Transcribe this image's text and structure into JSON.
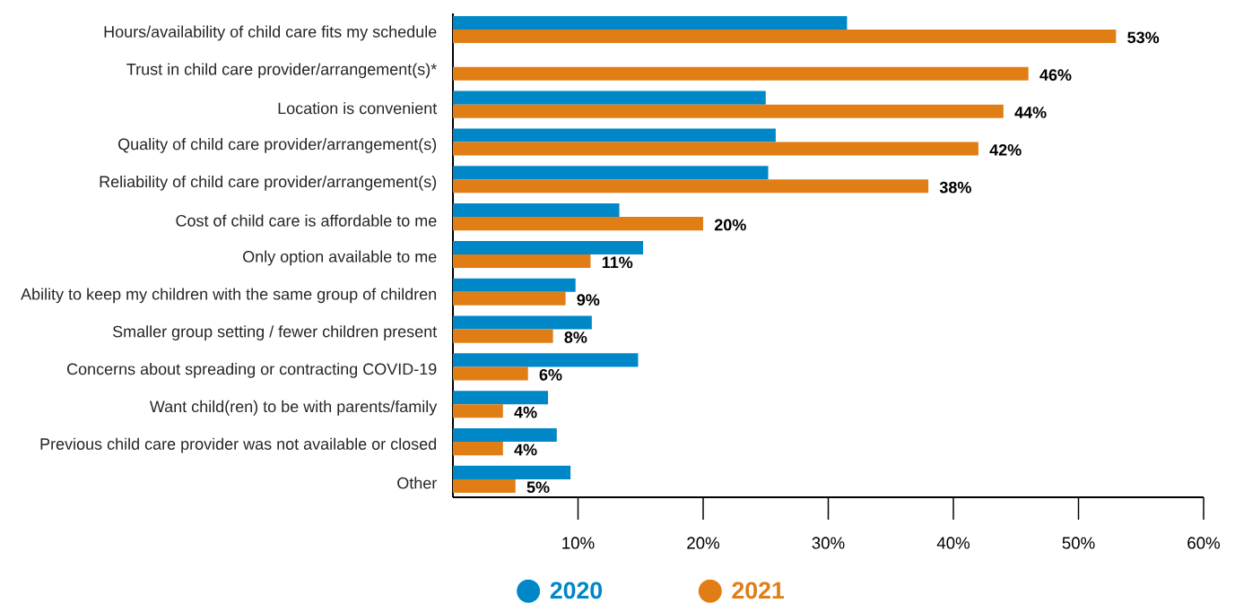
{
  "chart_data": {
    "type": "bar",
    "orientation": "horizontal",
    "categories": [
      "Hours/availability of child care fits my schedule",
      "Trust in child care provider/arrangement(s)*",
      "Location is convenient",
      "Quality of child care provider/arrangement(s)",
      "Reliability of child care provider/arrangement(s)",
      "Cost of child care is affordable to me",
      "Only option available to me",
      "Ability to keep my children with the same group of children",
      "Smaller group setting / fewer children present",
      "Concerns about spreading or contracting COVID-19",
      "Want child(ren) to be with parents/family",
      "Previous child care provider was not available or closed",
      "Other"
    ],
    "series": [
      {
        "name": "2020",
        "color": "#0087c7",
        "values": [
          31.5,
          null,
          25.0,
          25.8,
          25.2,
          13.3,
          15.2,
          9.8,
          11.1,
          14.8,
          7.6,
          8.3,
          9.4
        ]
      },
      {
        "name": "2021",
        "color": "#e07e15",
        "values": [
          53,
          46,
          44,
          42,
          38,
          20,
          11,
          9,
          8,
          6,
          4,
          4,
          5
        ],
        "value_labels": [
          "53%",
          "46%",
          "44%",
          "42%",
          "38%",
          "20%",
          "11%",
          "9%",
          "8%",
          "6%",
          "4%",
          "4%",
          "5%"
        ]
      }
    ],
    "xlim": [
      0,
      60
    ],
    "xticks": [
      {
        "value": 10,
        "label": "10%"
      },
      {
        "value": 20,
        "label": "20%"
      },
      {
        "value": 30,
        "label": "30%"
      },
      {
        "value": 40,
        "label": "40%"
      },
      {
        "value": 50,
        "label": "50%"
      },
      {
        "value": 60,
        "label": "60%"
      }
    ],
    "legend": "bottom"
  }
}
